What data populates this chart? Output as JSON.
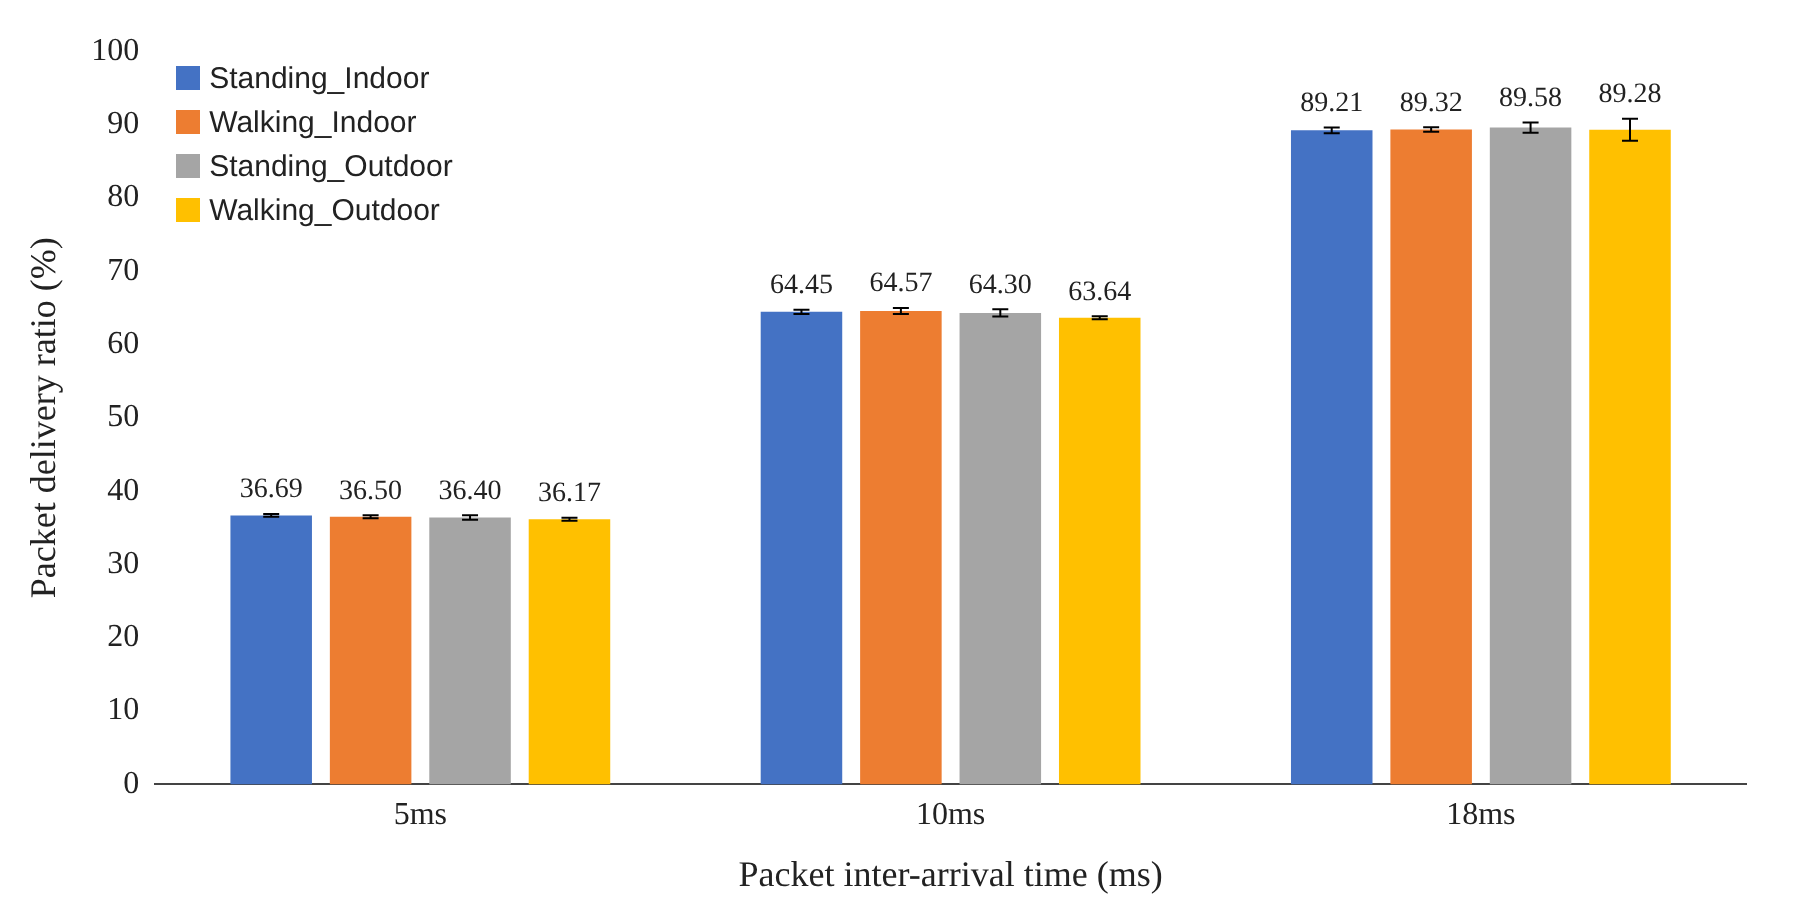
{
  "chart_data": {
    "type": "bar",
    "xlabel": "Packet inter-arrival time (ms)",
    "ylabel": "Packet delivery ratio (%)",
    "categories": [
      "5ms",
      "10ms",
      "18ms"
    ],
    "series": [
      {
        "name": "Standing_Indoor",
        "color": "#4472c4",
        "values": [
          36.69,
          64.45,
          89.21
        ],
        "errors": [
          0.2,
          0.3,
          0.4
        ],
        "value_labels": [
          "36.69",
          "64.45",
          "89.21"
        ]
      },
      {
        "name": "Walking_Indoor",
        "color": "#ed7d31",
        "values": [
          36.5,
          64.57,
          89.32
        ],
        "errors": [
          0.2,
          0.4,
          0.3
        ],
        "value_labels": [
          "36.50",
          "64.57",
          "89.32"
        ]
      },
      {
        "name": "Standing_Outdoor",
        "color": "#a5a5a5",
        "values": [
          36.4,
          64.3,
          89.58
        ],
        "errors": [
          0.3,
          0.5,
          0.7
        ],
        "value_labels": [
          "36.40",
          "64.30",
          "89.58"
        ]
      },
      {
        "name": "Walking_Outdoor",
        "color": "#ffc000",
        "values": [
          36.17,
          63.64,
          89.28
        ],
        "errors": [
          0.2,
          0.2,
          1.5
        ],
        "value_labels": [
          "36.17",
          "63.64",
          "89.28"
        ]
      }
    ],
    "ylim": [
      0,
      100
    ],
    "yticks": [
      0,
      10,
      20,
      30,
      40,
      50,
      60,
      70,
      80,
      90,
      100
    ],
    "grid": false,
    "legend": "top left"
  }
}
